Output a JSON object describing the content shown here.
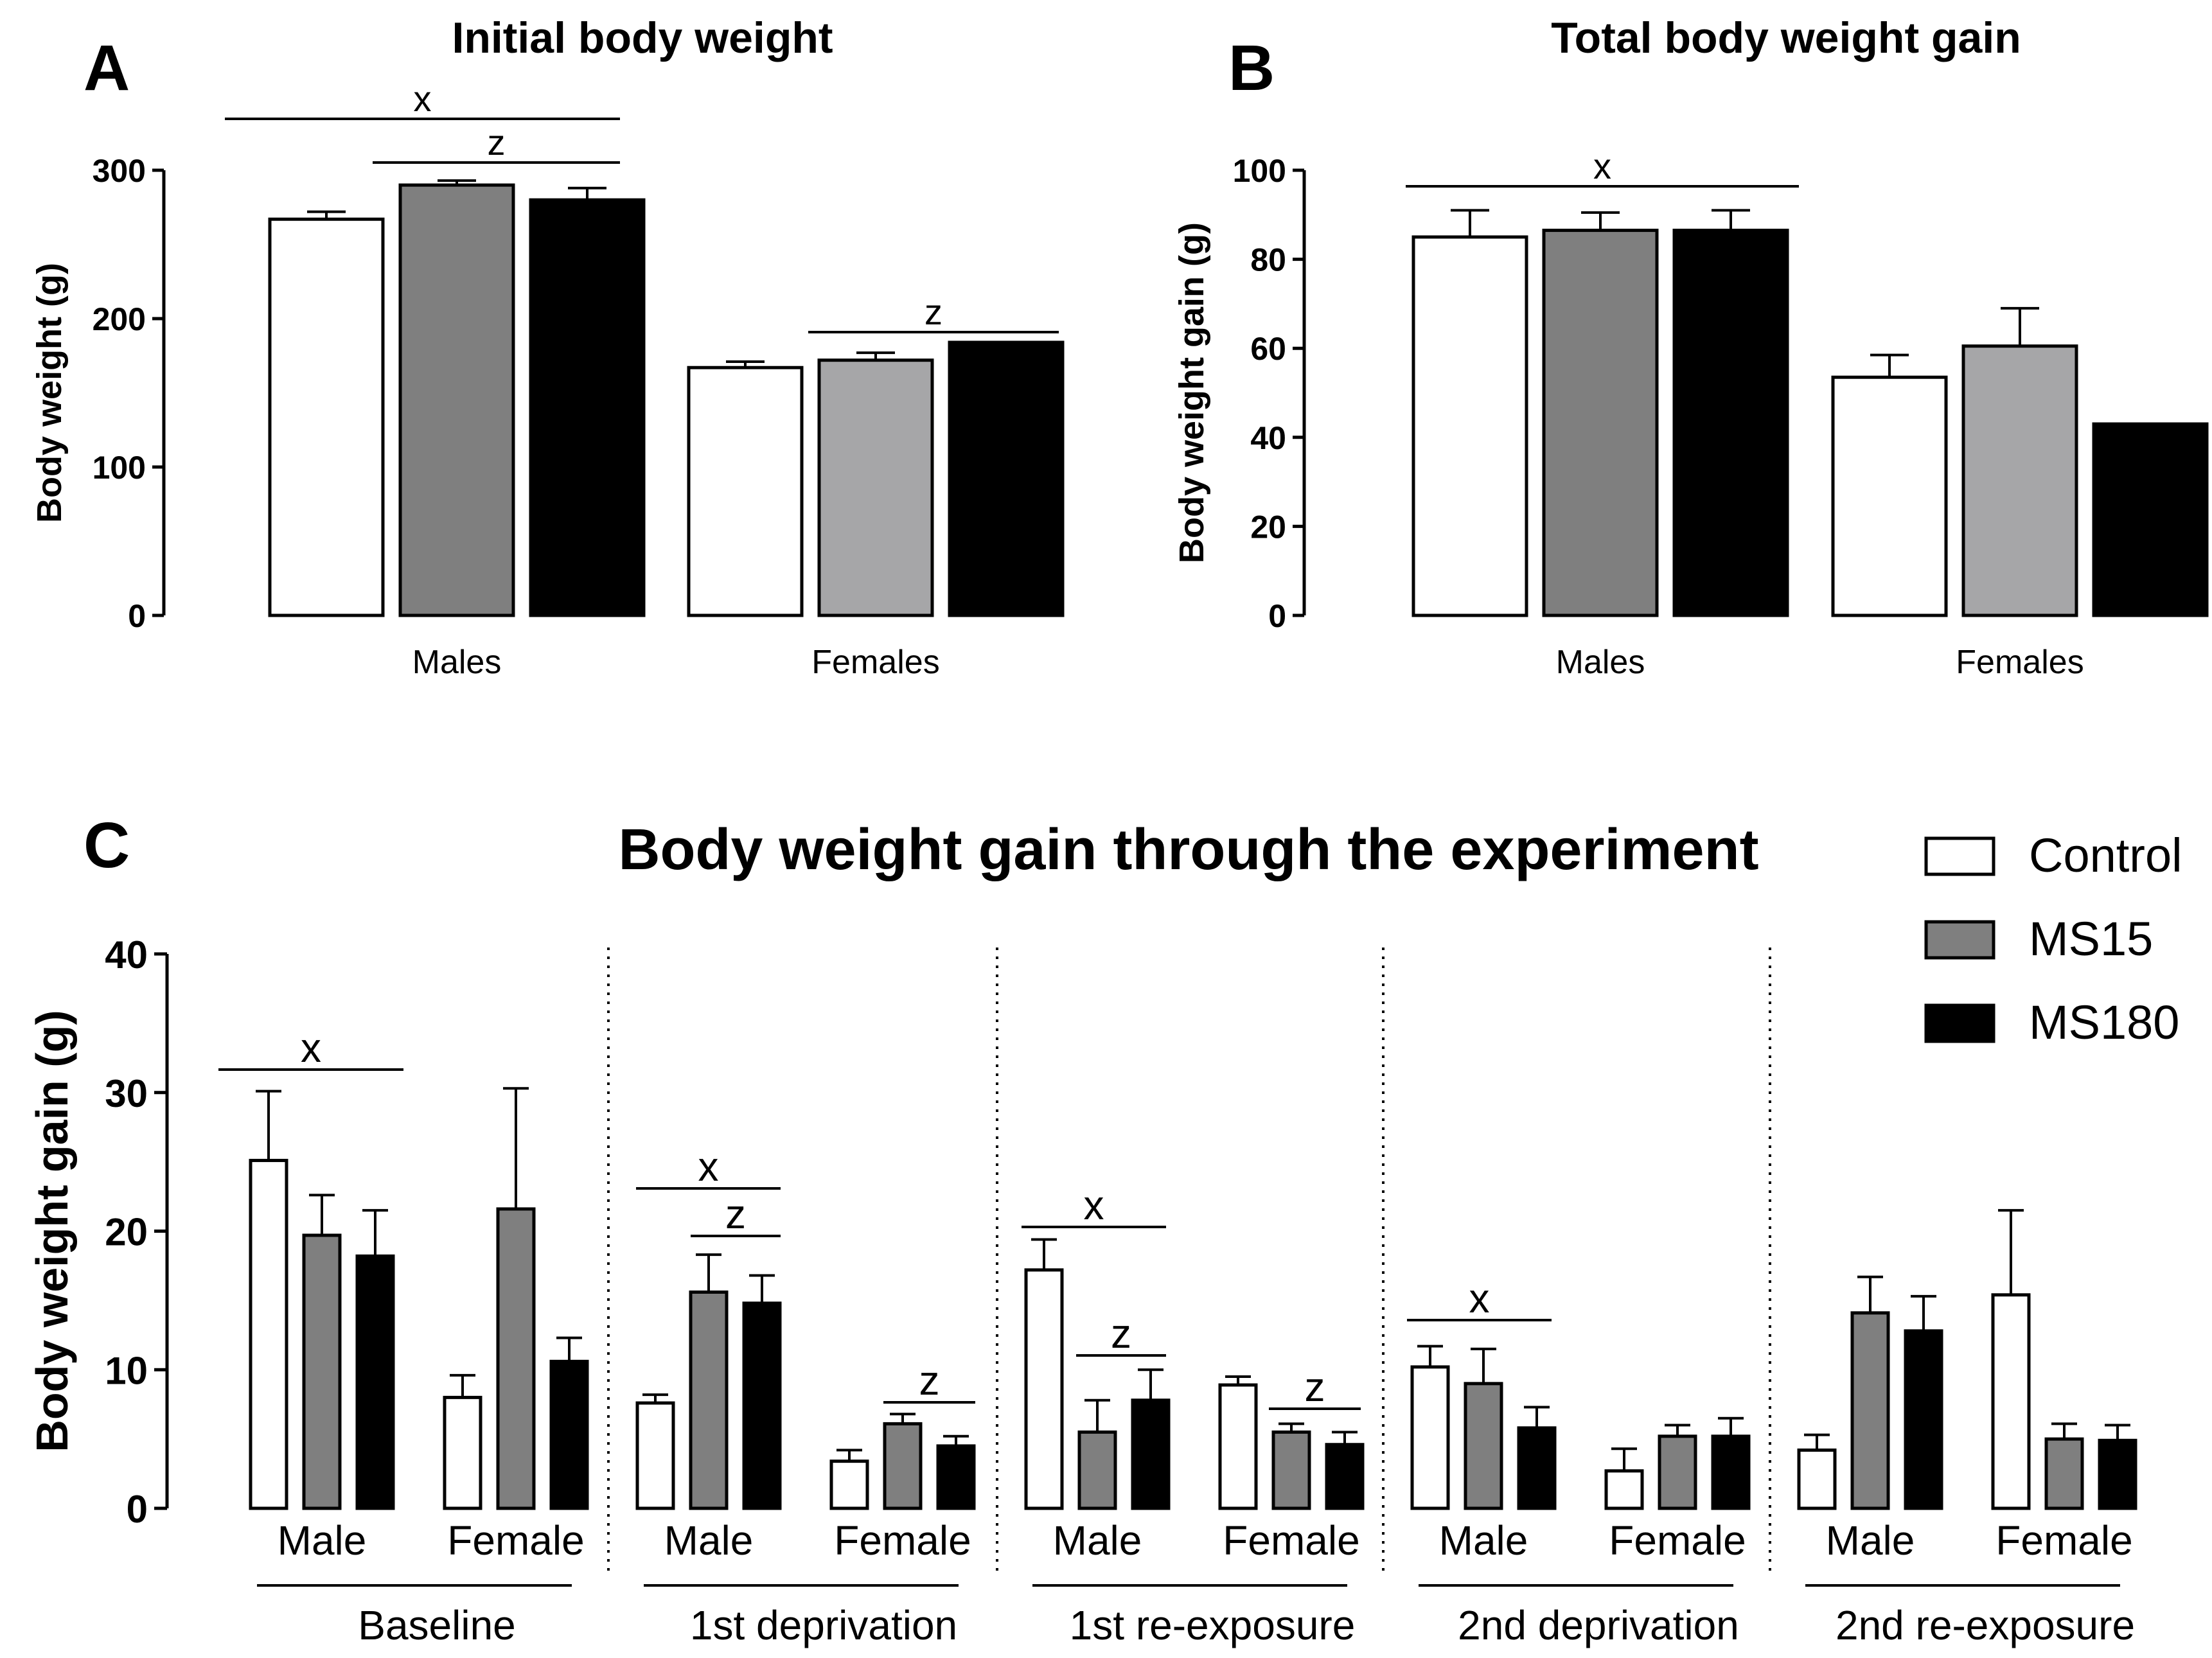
{
  "colors": {
    "Control": "#ffffff",
    "MS15": "#7f7f7f",
    "MS180": "#000000",
    "MS15_females": "#a6a6a8"
  },
  "chart_data": [
    {
      "panel": "A",
      "type": "bar",
      "title": "Initial body weight",
      "ylabel": "Body weight (g)",
      "xlabel": "",
      "ylim": [
        0,
        300
      ],
      "yticks": [
        "0",
        "100",
        "200",
        "300"
      ],
      "categories": [
        "Males",
        "Females"
      ],
      "series": [
        {
          "name": "Control",
          "values": [
            267,
            167
          ],
          "errors": [
            5,
            4
          ]
        },
        {
          "name": "MS15",
          "values": [
            290,
            172
          ],
          "errors": [
            3,
            5
          ]
        },
        {
          "name": "MS180",
          "values": [
            280,
            184
          ],
          "errors": [
            8,
            0
          ]
        }
      ],
      "annotations": [
        {
          "label": "x",
          "group": "Males",
          "bars": [
            "Control",
            "MS180"
          ]
        },
        {
          "label": "z",
          "group": "Males",
          "bars": [
            "MS15",
            "MS180"
          ]
        },
        {
          "label": "z",
          "group": "Females",
          "bars": [
            "MS15",
            "MS180"
          ]
        }
      ]
    },
    {
      "panel": "B",
      "type": "bar",
      "title": "Total body weight gain",
      "ylabel": "Body weight gain (g)",
      "xlabel": "",
      "ylim": [
        0,
        100
      ],
      "yticks": [
        "0",
        "20",
        "40",
        "60",
        "80",
        "100"
      ],
      "categories": [
        "Males",
        "Females"
      ],
      "series": [
        {
          "name": "Control",
          "values": [
            85,
            53.5
          ],
          "errors": [
            6,
            5
          ]
        },
        {
          "name": "MS15",
          "values": [
            86.5,
            60.5
          ],
          "errors": [
            4,
            8.5
          ]
        },
        {
          "name": "MS180",
          "values": [
            86.5,
            43
          ],
          "errors": [
            4.5,
            0
          ]
        }
      ],
      "annotations": [
        {
          "label": "x",
          "group": "Males",
          "bars": [
            "Control",
            "MS180"
          ]
        }
      ]
    },
    {
      "panel": "C",
      "type": "bar",
      "title": "Body weight gain through the experiment",
      "ylabel": "Body weight gain (g)",
      "xlabel": "",
      "ylim": [
        0,
        40
      ],
      "yticks": [
        "0",
        "10",
        "20",
        "30",
        "40"
      ],
      "periods": [
        "Baseline",
        "1st deprivation",
        "1st re-exposure",
        "2nd deprivation",
        "2nd re-exposure"
      ],
      "sexes": [
        "Male",
        "Female"
      ],
      "legend": [
        "Control",
        "MS15",
        "MS180"
      ],
      "series": [
        {
          "name": "Control",
          "values": [
            25.1,
            8.0,
            7.6,
            3.4,
            17.2,
            8.9,
            10.2,
            2.7,
            4.2,
            15.4
          ],
          "errors": [
            5.0,
            1.6,
            0.6,
            0.8,
            2.2,
            0.6,
            1.5,
            1.6,
            1.1,
            6.1
          ]
        },
        {
          "name": "MS15",
          "values": [
            19.7,
            21.6,
            15.6,
            6.1,
            5.5,
            5.5,
            9.0,
            5.2,
            14.1,
            5.0
          ],
          "errors": [
            2.9,
            8.7,
            2.7,
            0.7,
            2.3,
            0.6,
            2.5,
            0.8,
            2.6,
            1.1
          ]
        },
        {
          "name": "MS180",
          "values": [
            18.2,
            10.6,
            14.8,
            4.5,
            7.8,
            4.6,
            5.8,
            5.2,
            12.8,
            4.9
          ],
          "errors": [
            3.3,
            1.7,
            2.0,
            0.7,
            2.2,
            0.9,
            1.5,
            1.3,
            2.5,
            1.1
          ]
        }
      ],
      "annotations": [
        {
          "label": "x",
          "period": "Baseline",
          "sex": "Male",
          "bars": [
            "Control",
            "MS180"
          ]
        },
        {
          "label": "x",
          "period": "1st deprivation",
          "sex": "Male",
          "bars": [
            "Control",
            "MS180"
          ]
        },
        {
          "label": "z",
          "period": "1st deprivation",
          "sex": "Male",
          "bars": [
            "MS15",
            "MS180"
          ]
        },
        {
          "label": "z",
          "period": "1st deprivation",
          "sex": "Female",
          "bars": [
            "MS15",
            "MS180"
          ]
        },
        {
          "label": "x",
          "period": "1st re-exposure",
          "sex": "Male",
          "bars": [
            "Control",
            "MS180"
          ]
        },
        {
          "label": "z",
          "period": "1st re-exposure",
          "sex": "Male",
          "bars": [
            "MS15",
            "MS180"
          ]
        },
        {
          "label": "z",
          "period": "1st re-exposure",
          "sex": "Female",
          "bars": [
            "MS15",
            "MS180"
          ]
        },
        {
          "label": "x",
          "period": "2nd deprivation",
          "sex": "Male",
          "bars": [
            "Control",
            "MS180"
          ]
        }
      ]
    }
  ],
  "panel_letters": [
    "A",
    "B",
    "C"
  ]
}
